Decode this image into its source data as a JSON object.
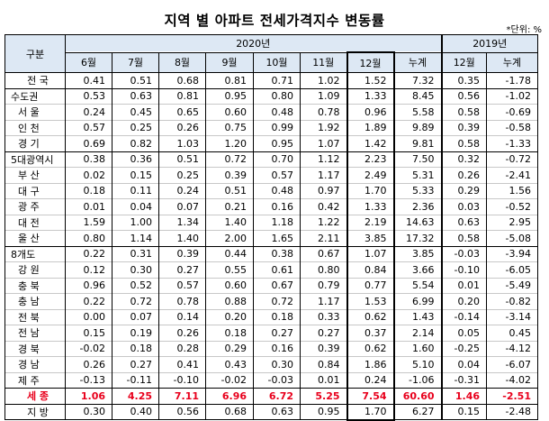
{
  "title": "지역 별 아파트 전세가격지수 변동률",
  "unit": "*단위: %",
  "header": {
    "group_label": "구분",
    "year_2020": "2020년",
    "year_2019": "2019년",
    "months_2020": [
      "6월",
      "7월",
      "8월",
      "9월",
      "10월",
      "11월",
      "12월",
      "누계"
    ],
    "months_2019": [
      "12월",
      "누계"
    ]
  },
  "rows": [
    {
      "label": "전  국",
      "values": [
        "0.41",
        "0.51",
        "0.68",
        "0.81",
        "0.71",
        "1.02",
        "1.52",
        "7.32",
        "0.35",
        "-1.78"
      ]
    },
    {
      "label": "수도권",
      "values": [
        "0.53",
        "0.63",
        "0.81",
        "0.95",
        "0.80",
        "1.09",
        "1.33",
        "8.45",
        "0.56",
        "-1.02"
      ]
    },
    {
      "label": "서  울",
      "values": [
        "0.24",
        "0.45",
        "0.65",
        "0.60",
        "0.48",
        "0.78",
        "0.96",
        "5.58",
        "0.58",
        "-0.69"
      ]
    },
    {
      "label": "인  천",
      "values": [
        "0.57",
        "0.25",
        "0.26",
        "0.75",
        "0.99",
        "1.92",
        "1.89",
        "9.89",
        "0.39",
        "-0.58"
      ]
    },
    {
      "label": "경  기",
      "values": [
        "0.69",
        "0.82",
        "1.03",
        "1.20",
        "0.95",
        "1.07",
        "1.42",
        "9.81",
        "0.58",
        "-1.33"
      ]
    },
    {
      "label": "5대광역시",
      "values": [
        "0.38",
        "0.36",
        "0.51",
        "0.72",
        "0.70",
        "1.12",
        "2.23",
        "7.50",
        "0.32",
        "-0.72"
      ]
    },
    {
      "label": "부  산",
      "values": [
        "0.02",
        "0.15",
        "0.25",
        "0.39",
        "0.57",
        "1.17",
        "2.49",
        "5.31",
        "0.26",
        "-2.41"
      ]
    },
    {
      "label": "대  구",
      "values": [
        "0.18",
        "0.11",
        "0.24",
        "0.51",
        "0.48",
        "0.97",
        "1.70",
        "5.33",
        "0.29",
        "1.56"
      ]
    },
    {
      "label": "광  주",
      "values": [
        "0.01",
        "0.04",
        "0.07",
        "0.21",
        "0.16",
        "0.42",
        "1.33",
        "2.36",
        "0.03",
        "-0.52"
      ]
    },
    {
      "label": "대  전",
      "values": [
        "1.59",
        "1.00",
        "1.34",
        "1.40",
        "1.18",
        "1.22",
        "2.19",
        "14.63",
        "0.63",
        "2.95"
      ]
    },
    {
      "label": "울  산",
      "values": [
        "0.80",
        "1.14",
        "1.40",
        "2.00",
        "1.65",
        "2.11",
        "3.85",
        "17.32",
        "0.58",
        "-5.08"
      ]
    },
    {
      "label": "8개도",
      "values": [
        "0.22",
        "0.31",
        "0.39",
        "0.44",
        "0.38",
        "0.67",
        "1.07",
        "3.85",
        "-0.03",
        "-3.94"
      ]
    },
    {
      "label": "강  원",
      "values": [
        "0.12",
        "0.30",
        "0.27",
        "0.55",
        "0.61",
        "0.80",
        "0.84",
        "3.66",
        "-0.10",
        "-6.05"
      ]
    },
    {
      "label": "충  북",
      "values": [
        "0.96",
        "0.52",
        "0.57",
        "0.60",
        "0.67",
        "0.79",
        "0.77",
        "5.54",
        "0.01",
        "-5.49"
      ]
    },
    {
      "label": "충  남",
      "values": [
        "0.22",
        "0.72",
        "0.78",
        "0.88",
        "0.72",
        "1.17",
        "1.53",
        "6.99",
        "0.20",
        "-0.82"
      ]
    },
    {
      "label": "전  북",
      "values": [
        "0.00",
        "0.07",
        "0.14",
        "0.20",
        "0.18",
        "0.33",
        "0.62",
        "1.43",
        "-0.14",
        "-3.14"
      ]
    },
    {
      "label": "전  남",
      "values": [
        "0.15",
        "0.19",
        "0.26",
        "0.18",
        "0.27",
        "0.27",
        "0.37",
        "2.14",
        "0.05",
        "0.45"
      ]
    },
    {
      "label": "경  북",
      "values": [
        "-0.02",
        "0.18",
        "0.28",
        "0.29",
        "0.16",
        "0.39",
        "0.62",
        "1.60",
        "-0.25",
        "-4.12"
      ]
    },
    {
      "label": "경  남",
      "values": [
        "0.26",
        "0.27",
        "0.41",
        "0.43",
        "0.30",
        "0.84",
        "1.86",
        "5.10",
        "0.04",
        "-6.07"
      ]
    },
    {
      "label": "제  주",
      "values": [
        "-0.13",
        "-0.11",
        "-0.10",
        "-0.02",
        "-0.03",
        "0.01",
        "0.24",
        "-1.06",
        "-0.31",
        "-4.02"
      ]
    },
    {
      "label": "세  종",
      "values": [
        "1.06",
        "4.25",
        "7.11",
        "6.96",
        "6.72",
        "5.25",
        "7.54",
        "60.60",
        "1.46",
        "-2.51"
      ]
    },
    {
      "label": "지  방",
      "values": [
        "0.30",
        "0.40",
        "0.56",
        "0.68",
        "0.63",
        "0.95",
        "1.70",
        "6.27",
        "0.15",
        "-2.48"
      ]
    }
  ],
  "colors": {
    "header_bg": "#dde8f4",
    "highlight_text": "#e8001c"
  }
}
